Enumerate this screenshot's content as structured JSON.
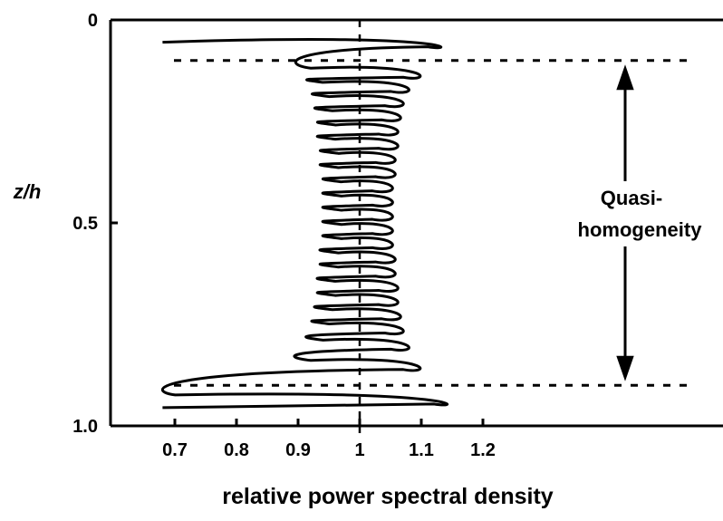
{
  "chart_data": {
    "type": "line",
    "xlabel": "relative power spectral density",
    "ylabel": "z/h",
    "x_ticks": [
      "0.7",
      "0.8",
      "0.9",
      "1",
      "1.1",
      "1.2"
    ],
    "x_tick_values": [
      0.7,
      0.8,
      0.9,
      1.0,
      1.1,
      1.2
    ],
    "y_ticks": [
      "0",
      "0.5",
      "1.0"
    ],
    "y_tick_values": [
      0,
      0.5,
      1.0
    ],
    "y_axis_inverted": true,
    "xlim": [
      0.62,
      1.57
    ],
    "ylim": [
      0,
      1.0
    ],
    "reference_line": {
      "x": 1.0,
      "style": "dashed"
    },
    "region_bounds": {
      "z": [
        0.1,
        0.9
      ],
      "style": "dashed"
    },
    "annotation": {
      "line1": "Quasi-",
      "line2": "homogeneity"
    },
    "series": [
      {
        "oscillation": [
          {
            "z": 0.055,
            "x_left": 0.68,
            "x_right": 1.14
          },
          {
            "z": 0.13,
            "x_left": 0.9,
            "x_right": 1.1
          },
          {
            "z": 0.165,
            "x_left": 0.92,
            "x_right": 1.08
          },
          {
            "z": 0.2,
            "x_left": 0.93,
            "x_right": 1.07
          },
          {
            "z": 0.235,
            "x_left": 0.935,
            "x_right": 1.065
          },
          {
            "z": 0.27,
            "x_left": 0.94,
            "x_right": 1.06
          },
          {
            "z": 0.305,
            "x_left": 0.94,
            "x_right": 1.06
          },
          {
            "z": 0.34,
            "x_left": 0.945,
            "x_right": 1.055
          },
          {
            "z": 0.375,
            "x_left": 0.945,
            "x_right": 1.055
          },
          {
            "z": 0.41,
            "x_left": 0.95,
            "x_right": 1.05
          },
          {
            "z": 0.445,
            "x_left": 0.95,
            "x_right": 1.05
          },
          {
            "z": 0.48,
            "x_left": 0.95,
            "x_right": 1.05
          },
          {
            "z": 0.515,
            "x_left": 0.95,
            "x_right": 1.05
          },
          {
            "z": 0.55,
            "x_left": 0.95,
            "x_right": 1.05
          },
          {
            "z": 0.585,
            "x_left": 0.945,
            "x_right": 1.055
          },
          {
            "z": 0.62,
            "x_left": 0.945,
            "x_right": 1.055
          },
          {
            "z": 0.655,
            "x_left": 0.94,
            "x_right": 1.06
          },
          {
            "z": 0.69,
            "x_left": 0.94,
            "x_right": 1.06
          },
          {
            "z": 0.725,
            "x_left": 0.935,
            "x_right": 1.065
          },
          {
            "z": 0.76,
            "x_left": 0.93,
            "x_right": 1.07
          },
          {
            "z": 0.8,
            "x_left": 0.92,
            "x_right": 1.08
          },
          {
            "z": 0.85,
            "x_left": 0.9,
            "x_right": 1.1
          },
          {
            "z": 0.935,
            "x_left": 0.68,
            "x_right": 1.15
          }
        ]
      }
    ]
  }
}
